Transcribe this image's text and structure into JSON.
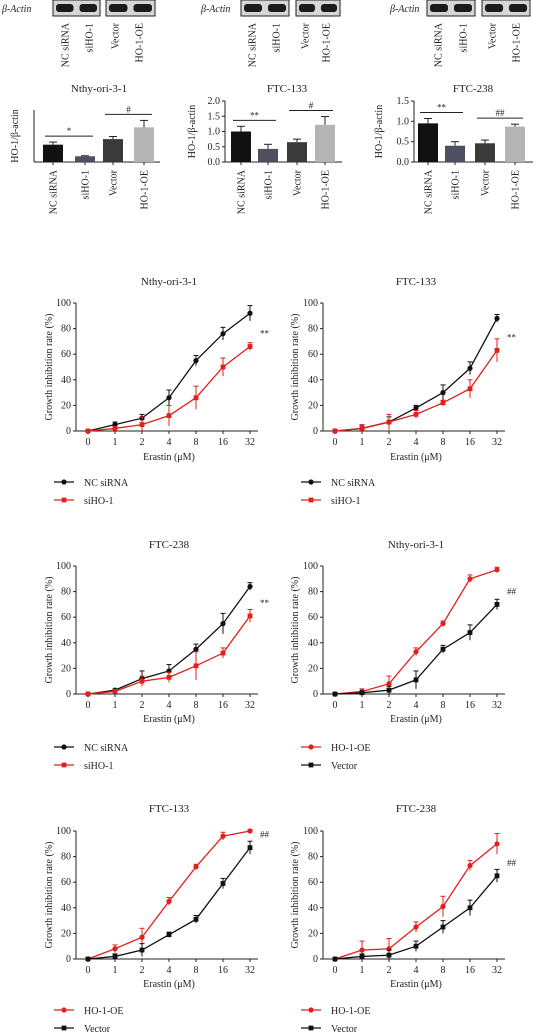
{
  "blots": [
    {
      "actin_label": "β-Actin",
      "lanes": [
        "NC siRNA",
        "siHO-1",
        "Vector",
        "HO-1-OE"
      ]
    },
    {
      "actin_label": "β-Actin",
      "lanes": [
        "NC siRNA",
        "siHO-1",
        "Vector",
        "HO-1-OE"
      ]
    },
    {
      "actin_label": "β-Actin",
      "lanes": [
        "NC siRNA",
        "siHO-1",
        "Vector",
        "HO-1-OE"
      ]
    }
  ],
  "chart_data": [
    {
      "type": "bar",
      "title": "Nthy-ori-3-1",
      "ylabel": "HO-1/β-actin",
      "categories": [
        "NC siRNA",
        "siHO-1",
        "Vector",
        "HO-1-OE"
      ],
      "values": [
        1.0,
        0.33,
        1.32,
        2.0
      ],
      "errors": [
        0.15,
        0.03,
        0.15,
        0.4
      ],
      "colors": [
        "#111111",
        "#4f4f61",
        "#3a3a3a",
        "#b4b4b4"
      ],
      "ylim": [
        0,
        3.0
      ],
      "yticks": [],
      "sig": [
        {
          "label": "*",
          "pair": [
            0,
            1
          ]
        },
        {
          "label": "#",
          "pair": [
            2,
            3
          ]
        }
      ]
    },
    {
      "type": "bar",
      "title": "FTC-133",
      "ylabel": "HO-1/β-actin",
      "categories": [
        "NC siRNA",
        "siHO-1",
        "Vector",
        "HO-1-OE"
      ],
      "values": [
        1.0,
        0.43,
        0.65,
        1.22
      ],
      "errors": [
        0.17,
        0.15,
        0.1,
        0.27
      ],
      "colors": [
        "#111111",
        "#4f4f61",
        "#3a3a3a",
        "#b4b4b4"
      ],
      "ylim": [
        0,
        2.0
      ],
      "yticks": [
        "0.0",
        "0.5",
        "1.0",
        "1.5",
        "2.0"
      ],
      "sig": [
        {
          "label": "**",
          "pair": [
            0,
            1
          ]
        },
        {
          "label": "#",
          "pair": [
            2,
            3
          ]
        }
      ]
    },
    {
      "type": "bar",
      "title": "FTC-238",
      "ylabel": "HO-1/β-actin",
      "categories": [
        "NC siRNA",
        "siHO-1",
        "Vector",
        "HO-1-OE"
      ],
      "values": [
        0.95,
        0.4,
        0.46,
        0.87
      ],
      "errors": [
        0.12,
        0.1,
        0.08,
        0.06
      ],
      "colors": [
        "#111111",
        "#4f4f61",
        "#3a3a3a",
        "#b4b4b4"
      ],
      "ylim": [
        0,
        1.5
      ],
      "yticks": [
        "0.0",
        "0.5",
        "1.0",
        "1.5"
      ],
      "sig": [
        {
          "label": "**",
          "pair": [
            0,
            1
          ]
        },
        {
          "label": "##",
          "pair": [
            2,
            3
          ]
        }
      ]
    },
    {
      "type": "line",
      "title": "Nthy-ori-3-1",
      "xlabel": "Erastin (μM)",
      "ylabel": "Growth inhibition rate (%)",
      "categories": [
        "0",
        "1",
        "2",
        "4",
        "8",
        "16",
        "32"
      ],
      "ylim": [
        0,
        100
      ],
      "yticks": [
        "0",
        "20",
        "40",
        "60",
        "80",
        "100"
      ],
      "sig": "**",
      "series": [
        {
          "name": "NC siRNA",
          "color": "#111111",
          "marker": "circle",
          "values": [
            0,
            5,
            10,
            26,
            55,
            76,
            92
          ],
          "errors": [
            1,
            2,
            3,
            6,
            4,
            5,
            6
          ]
        },
        {
          "name": "siHO-1",
          "color": "#e0201b",
          "marker": "square",
          "values": [
            0,
            2,
            5,
            12,
            26,
            50,
            66
          ],
          "errors": [
            1,
            1,
            6,
            8,
            9,
            7,
            3
          ]
        }
      ]
    },
    {
      "type": "line",
      "title": "FTC-133",
      "xlabel": "Erastin (μM)",
      "ylabel": "Growth inhibition rate (%)",
      "categories": [
        "0",
        "1",
        "2",
        "4",
        "8",
        "16",
        "32"
      ],
      "ylim": [
        0,
        100
      ],
      "yticks": [
        "0",
        "20",
        "40",
        "60",
        "80",
        "100"
      ],
      "sig": "**",
      "series": [
        {
          "name": "NC siRNA",
          "color": "#111111",
          "marker": "circle",
          "values": [
            0,
            2,
            7,
            18,
            30,
            49,
            88
          ],
          "errors": [
            1,
            2,
            4,
            2,
            6,
            5,
            3
          ]
        },
        {
          "name": "siHO-1",
          "color": "#e0201b",
          "marker": "square",
          "values": [
            0,
            2,
            7,
            13,
            22,
            33,
            63
          ],
          "errors": [
            1,
            3,
            6,
            3,
            2,
            7,
            9
          ]
        }
      ]
    },
    {
      "type": "line",
      "title": "FTC-238",
      "xlabel": "Erastin (μM)",
      "ylabel": "Growth inhibition rate (%)",
      "categories": [
        "0",
        "1",
        "2",
        "4",
        "8",
        "16",
        "32"
      ],
      "ylim": [
        0,
        100
      ],
      "yticks": [
        "0",
        "20",
        "40",
        "60",
        "80",
        "100"
      ],
      "sig": "**",
      "series": [
        {
          "name": "NC siRNA",
          "color": "#111111",
          "marker": "circle",
          "values": [
            0,
            3,
            12,
            18,
            35,
            55,
            84
          ],
          "errors": [
            1,
            1,
            6,
            5,
            4,
            8,
            3
          ]
        },
        {
          "name": "siHO-1",
          "color": "#e0201b",
          "marker": "square",
          "values": [
            0,
            2,
            10,
            13,
            22,
            32,
            61
          ],
          "errors": [
            1,
            1,
            4,
            4,
            11,
            4,
            5
          ]
        }
      ]
    },
    {
      "type": "line",
      "title": "Nthy-ori-3-1",
      "xlabel": "Erastin (μM)",
      "ylabel": "Growth inhibition rate (%)",
      "categories": [
        "0",
        "1",
        "2",
        "4",
        "8",
        "16",
        "32"
      ],
      "ylim": [
        0,
        100
      ],
      "yticks": [
        "0",
        "20",
        "40",
        "60",
        "80",
        "100"
      ],
      "sig": "##",
      "series": [
        {
          "name": "HO-1-OE",
          "color": "#e0201b",
          "marker": "circle",
          "values": [
            0,
            2,
            8,
            33,
            55,
            90,
            97
          ],
          "errors": [
            1,
            2,
            6,
            3,
            2,
            3,
            2
          ]
        },
        {
          "name": "Vector",
          "color": "#111111",
          "marker": "square",
          "values": [
            0,
            1,
            3,
            11,
            35,
            48,
            70
          ],
          "errors": [
            1,
            1,
            3,
            7,
            3,
            6,
            4
          ]
        }
      ]
    },
    {
      "type": "line",
      "title": "FTC-133",
      "xlabel": "Erastin (μM)",
      "ylabel": "Growth inhibition rate (%)",
      "categories": [
        "0",
        "1",
        "2",
        "4",
        "8",
        "16",
        "32"
      ],
      "ylim": [
        0,
        100
      ],
      "yticks": [
        "0",
        "20",
        "40",
        "60",
        "80",
        "100"
      ],
      "sig": "##",
      "series": [
        {
          "name": "HO-1-OE",
          "color": "#e0201b",
          "marker": "circle",
          "values": [
            0,
            8,
            17,
            45,
            72,
            96,
            100
          ],
          "errors": [
            1,
            3,
            7,
            3,
            2,
            3,
            1
          ]
        },
        {
          "name": "Vector",
          "color": "#111111",
          "marker": "square",
          "values": [
            0,
            2,
            7,
            19,
            31,
            59,
            87
          ],
          "errors": [
            1,
            2,
            5,
            2,
            3,
            4,
            5
          ]
        }
      ]
    },
    {
      "type": "line",
      "title": "FTC-238",
      "xlabel": "Erastin (μM)",
      "ylabel": "Growth inhibition rate (%)",
      "categories": [
        "0",
        "1",
        "2",
        "4",
        "8",
        "16",
        "32"
      ],
      "ylim": [
        0,
        100
      ],
      "yticks": [
        "0",
        "20",
        "40",
        "60",
        "80",
        "100"
      ],
      "sig": "##",
      "series": [
        {
          "name": "HO-1-OE",
          "color": "#e0201b",
          "marker": "circle",
          "values": [
            0,
            7,
            8,
            25,
            41,
            73,
            90
          ],
          "errors": [
            1,
            7,
            8,
            4,
            8,
            4,
            8
          ]
        },
        {
          "name": "Vector",
          "color": "#111111",
          "marker": "square",
          "values": [
            0,
            2,
            3,
            10,
            25,
            40,
            65
          ],
          "errors": [
            1,
            2,
            4,
            4,
            5,
            6,
            5
          ]
        }
      ]
    }
  ]
}
